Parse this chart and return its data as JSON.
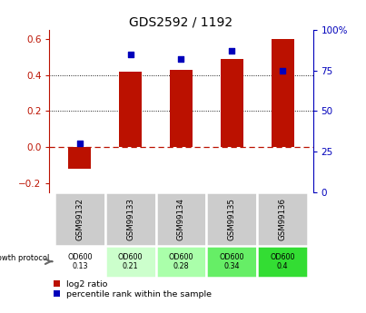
{
  "title": "GDS2592 / 1192",
  "samples": [
    "GSM99132",
    "GSM99133",
    "GSM99134",
    "GSM99135",
    "GSM99136"
  ],
  "log2_ratio": [
    -0.12,
    0.42,
    0.43,
    0.49,
    0.6
  ],
  "percentile_rank": [
    30,
    85,
    82,
    87,
    75
  ],
  "bar_color": "#bb1100",
  "dot_color": "#0000bb",
  "ylim_left": [
    -0.25,
    0.65
  ],
  "ylim_right": [
    0,
    100
  ],
  "yticks_left": [
    -0.2,
    0.0,
    0.2,
    0.4,
    0.6
  ],
  "yticks_right": [
    0,
    25,
    50,
    75,
    100
  ],
  "ytick_right_labels": [
    "0",
    "25",
    "50",
    "75",
    "100%"
  ],
  "growth_protocol_labels": [
    "OD600\n0.13",
    "OD600\n0.21",
    "OD600\n0.28",
    "OD600\n0.34",
    "OD600\n0.4"
  ],
  "growth_protocol_colors": [
    "#ffffff",
    "#ccffcc",
    "#aaffaa",
    "#66ee66",
    "#33dd33"
  ],
  "gsm_bg_color": "#cccccc",
  "legend_log2": "log2 ratio",
  "legend_pct": "percentile rank within the sample",
  "bar_width": 0.45
}
